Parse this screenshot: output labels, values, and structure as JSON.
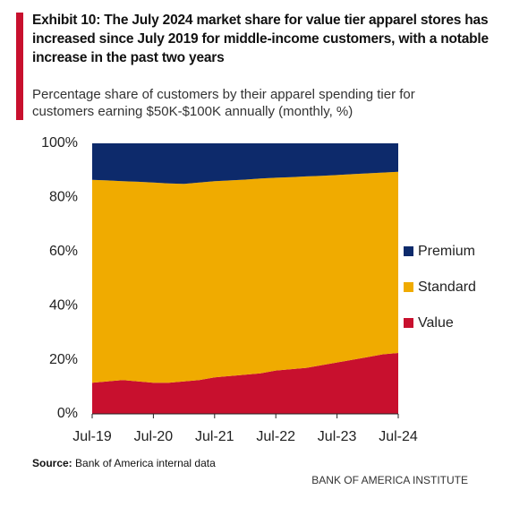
{
  "chart_data": {
    "type": "stacked_area",
    "title": "Exhibit 10: The July 2024 market share for value tier apparel stores has increased since July 2019 for middle-income customers, with a notable increase in the past two years",
    "subtitle": "Percentage share of customers by their apparel spending tier for customers earning $50K-$100K annually (monthly, %)",
    "categories": [
      "Jul-19",
      null,
      null,
      null,
      "Jul-20",
      null,
      null,
      null,
      "Jul-21",
      null,
      null,
      null,
      "Jul-22",
      null,
      null,
      null,
      "Jul-23",
      null,
      null,
      null,
      "Jul-24"
    ],
    "series": [
      {
        "name": "Value",
        "color": "#c8102e",
        "values": [
          11.5,
          12,
          12.5,
          12,
          11.5,
          11.5,
          12,
          12.5,
          13.5,
          14,
          14.5,
          15,
          16,
          16.5,
          17,
          18,
          19,
          20,
          21,
          22,
          22.5
        ]
      },
      {
        "name": "Standard",
        "color": "#f0ab00",
        "values": [
          75,
          74.3,
          73.5,
          73.8,
          74,
          73.7,
          73,
          73,
          72.5,
          72.3,
          72.1,
          72,
          71.3,
          71,
          70.8,
          70,
          69.3,
          68.6,
          67.9,
          67.2,
          67
        ]
      },
      {
        "name": "Premium",
        "color": "#0d2a6b",
        "values": [
          13.5,
          13.7,
          14,
          14.2,
          14.5,
          14.8,
          15,
          14.5,
          14,
          13.7,
          13.4,
          13,
          12.7,
          12.5,
          12.2,
          12,
          11.7,
          11.4,
          11.1,
          10.8,
          10.5
        ]
      }
    ],
    "ylim": [
      0,
      100
    ],
    "yticks": [
      {
        "value": 0,
        "label": "0%"
      },
      {
        "value": 20,
        "label": "20%"
      },
      {
        "value": 40,
        "label": "40%"
      },
      {
        "value": 60,
        "label": "60%"
      },
      {
        "value": 80,
        "label": "80%"
      },
      {
        "value": 100,
        "label": "100%"
      }
    ],
    "legend": "right",
    "source_label": "Source:",
    "source": "Bank of America internal data",
    "footer": "BANK OF AMERICA INSTITUTE"
  }
}
